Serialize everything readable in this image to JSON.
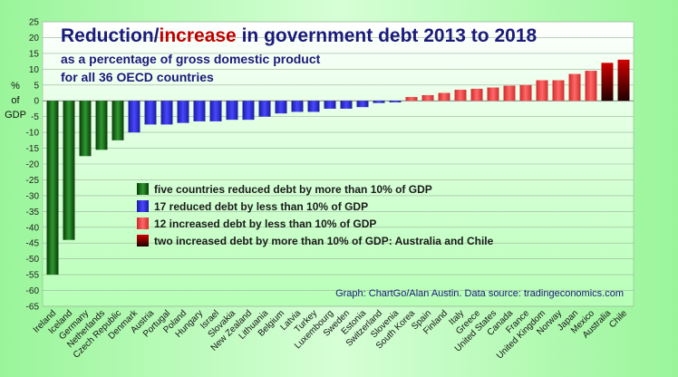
{
  "chart_data": {
    "type": "bar",
    "title_part1": "Reduction/",
    "title_part2": "increase",
    "title_part3": " in government debt 2013 to 2018",
    "subtitle_line1": "as a percentage of gross domestic product",
    "subtitle_line2": "for all 36 OECD countries",
    "ylabel_lines": [
      "%",
      "of",
      "GDP"
    ],
    "source": "Graph: ChartGo/Alan Austin. Data source: tradingeconomics.com",
    "ylim": [
      -65,
      25
    ],
    "ytick_step": 5,
    "grid": true,
    "categories": [
      "Ireland",
      "Iceland",
      "Germany",
      "Netherlands",
      "Czech Republic",
      "Denmark",
      "Austria",
      "Portugal",
      "Poland",
      "Hungary",
      "Israel",
      "Slovakia",
      "New Zealand",
      "Lithuania",
      "Belgium",
      "Latvia",
      "Turkey",
      "Luxembourg",
      "Sweden",
      "Estonia",
      "Switzerland",
      "Slovenia",
      "South Korea",
      "Spain",
      "Finland",
      "Italy",
      "Greece",
      "United States",
      "Canada",
      "France",
      "United Kingdom",
      "Norway",
      "Japan",
      "Mexico",
      "Australia",
      "Chile"
    ],
    "values": [
      -55,
      -44,
      -17.5,
      -15.5,
      -12.5,
      -10,
      -7.5,
      -7.5,
      -7,
      -6.5,
      -6.5,
      -6,
      -6,
      -5,
      -4,
      -3.5,
      -3.5,
      -2.5,
      -2.5,
      -2,
      -0.7,
      -0.5,
      1.2,
      1.8,
      2.5,
      3.5,
      3.8,
      4.2,
      4.8,
      5,
      6.5,
      6.5,
      8.5,
      9.5,
      12,
      13
    ],
    "groups": [
      0,
      0,
      0,
      0,
      0,
      1,
      1,
      1,
      1,
      1,
      1,
      1,
      1,
      1,
      1,
      1,
      1,
      1,
      1,
      1,
      1,
      1,
      2,
      2,
      2,
      2,
      2,
      2,
      2,
      2,
      2,
      2,
      2,
      2,
      3,
      3
    ],
    "legend": [
      {
        "label": "five countries reduced debt by more than 10% of GDP",
        "color": "#2e8b2e"
      },
      {
        "label": "17 reduced debt by less than 10% of GDP",
        "color": "#3a3ae8"
      },
      {
        "label": "12 increased debt by less than 10% of GDP",
        "color": "#f05555"
      },
      {
        "label": "two increased debt by more than 10% of GDP: Australia and Chile",
        "color": "#b00000"
      }
    ]
  }
}
